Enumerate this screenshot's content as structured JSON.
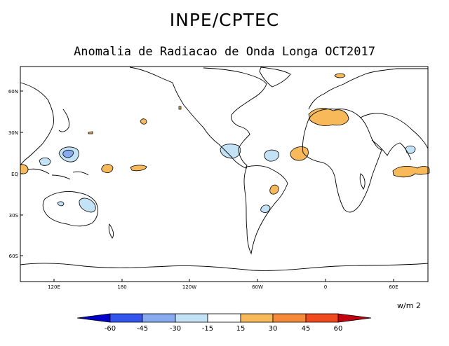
{
  "header": {
    "title": "INPE/CPTEC",
    "subtitle": "Anomalia de Radiacao de Onda Longa OCT2017"
  },
  "map": {
    "lat_labels": [
      "60N",
      "30N",
      "EQ",
      "30S",
      "60S"
    ],
    "lon_labels": [
      "120E",
      "180",
      "120W",
      "60W",
      "0",
      "60E"
    ]
  },
  "colorbar": {
    "units": "w/m 2",
    "tick_labels": [
      "-60",
      "-45",
      "-30",
      "-15",
      "15",
      "30",
      "45",
      "60"
    ],
    "colors": [
      "#0000cc",
      "#3355ee",
      "#88aaee",
      "#c4e2f6",
      "#ffffff",
      "#f7b95a",
      "#f58a3a",
      "#f04a1e",
      "#c40010"
    ]
  },
  "anomalies": {
    "positive_color": "#f7b95a",
    "negative_color": "#c4e2f6"
  }
}
